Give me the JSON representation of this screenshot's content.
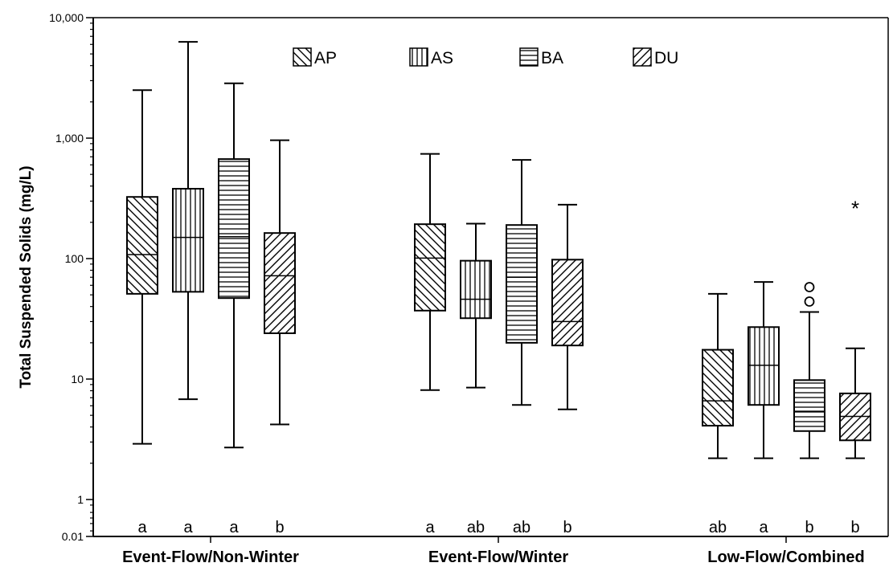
{
  "chart_data": {
    "type": "boxplot",
    "ylabel": "Total Suspended Solids (mg/L)",
    "yscale": "log",
    "ylim": [
      0.01,
      10000
    ],
    "yticks": [
      {
        "value": 0.01,
        "label": "0.01"
      },
      {
        "value": 1,
        "label": "1"
      },
      {
        "value": 10,
        "label": "10"
      },
      {
        "value": 100,
        "label": "100"
      },
      {
        "value": 1000,
        "label": "1,000"
      },
      {
        "value": 10000,
        "label": "10,000"
      }
    ],
    "grid": false,
    "legend": {
      "position": "top-center",
      "entries": [
        {
          "name": "AP",
          "pattern": "diag-down"
        },
        {
          "name": "AS",
          "pattern": "vertical"
        },
        {
          "name": "BA",
          "pattern": "horizontal"
        },
        {
          "name": "DU",
          "pattern": "diag-up"
        }
      ]
    },
    "groups": [
      {
        "label": "Event-Flow/Non-Winter",
        "boxes": [
          {
            "series": "AP",
            "min": 2.9,
            "q1": 51,
            "median": 108,
            "q3": 325,
            "max": 2500,
            "sig": "a"
          },
          {
            "series": "AS",
            "min": 6.8,
            "q1": 53,
            "median": 150,
            "q3": 380,
            "max": 6300,
            "sig": "a"
          },
          {
            "series": "BA",
            "min": 2.7,
            "q1": 47,
            "median": 152,
            "q3": 670,
            "max": 2850,
            "sig": "a"
          },
          {
            "series": "DU",
            "min": 4.2,
            "q1": 24,
            "median": 72,
            "q3": 163,
            "max": 960,
            "sig": "b"
          }
        ]
      },
      {
        "label": "Event-Flow/Winter",
        "boxes": [
          {
            "series": "AP",
            "min": 8.1,
            "q1": 37,
            "median": 101,
            "q3": 193,
            "max": 740,
            "sig": "a"
          },
          {
            "series": "AS",
            "min": 8.5,
            "q1": 32,
            "median": 46,
            "q3": 96,
            "max": 195,
            "sig": "ab"
          },
          {
            "series": "BA",
            "min": 6.1,
            "q1": 20,
            "median": 70,
            "q3": 190,
            "max": 660,
            "sig": "ab"
          },
          {
            "series": "DU",
            "min": 5.6,
            "q1": 19,
            "median": 30,
            "q3": 98,
            "max": 280,
            "sig": "b"
          }
        ]
      },
      {
        "label": "Low-Flow/Combined",
        "boxes": [
          {
            "series": "AP",
            "min": 2.2,
            "q1": 4.1,
            "median": 6.6,
            "q3": 17.5,
            "max": 51,
            "sig": "ab"
          },
          {
            "series": "AS",
            "min": 2.2,
            "q1": 6.1,
            "median": 13,
            "q3": 27,
            "max": 64,
            "sig": "a"
          },
          {
            "series": "BA",
            "min": 2.2,
            "q1": 3.7,
            "median": 5.4,
            "q3": 9.8,
            "max": 36,
            "outliers": [
              44,
              58
            ],
            "sig": "b"
          },
          {
            "series": "DU",
            "min": 2.2,
            "q1": 3.1,
            "median": 4.9,
            "q3": 7.6,
            "max": 18,
            "extremes": [
              270
            ],
            "sig": "b"
          }
        ]
      }
    ]
  }
}
